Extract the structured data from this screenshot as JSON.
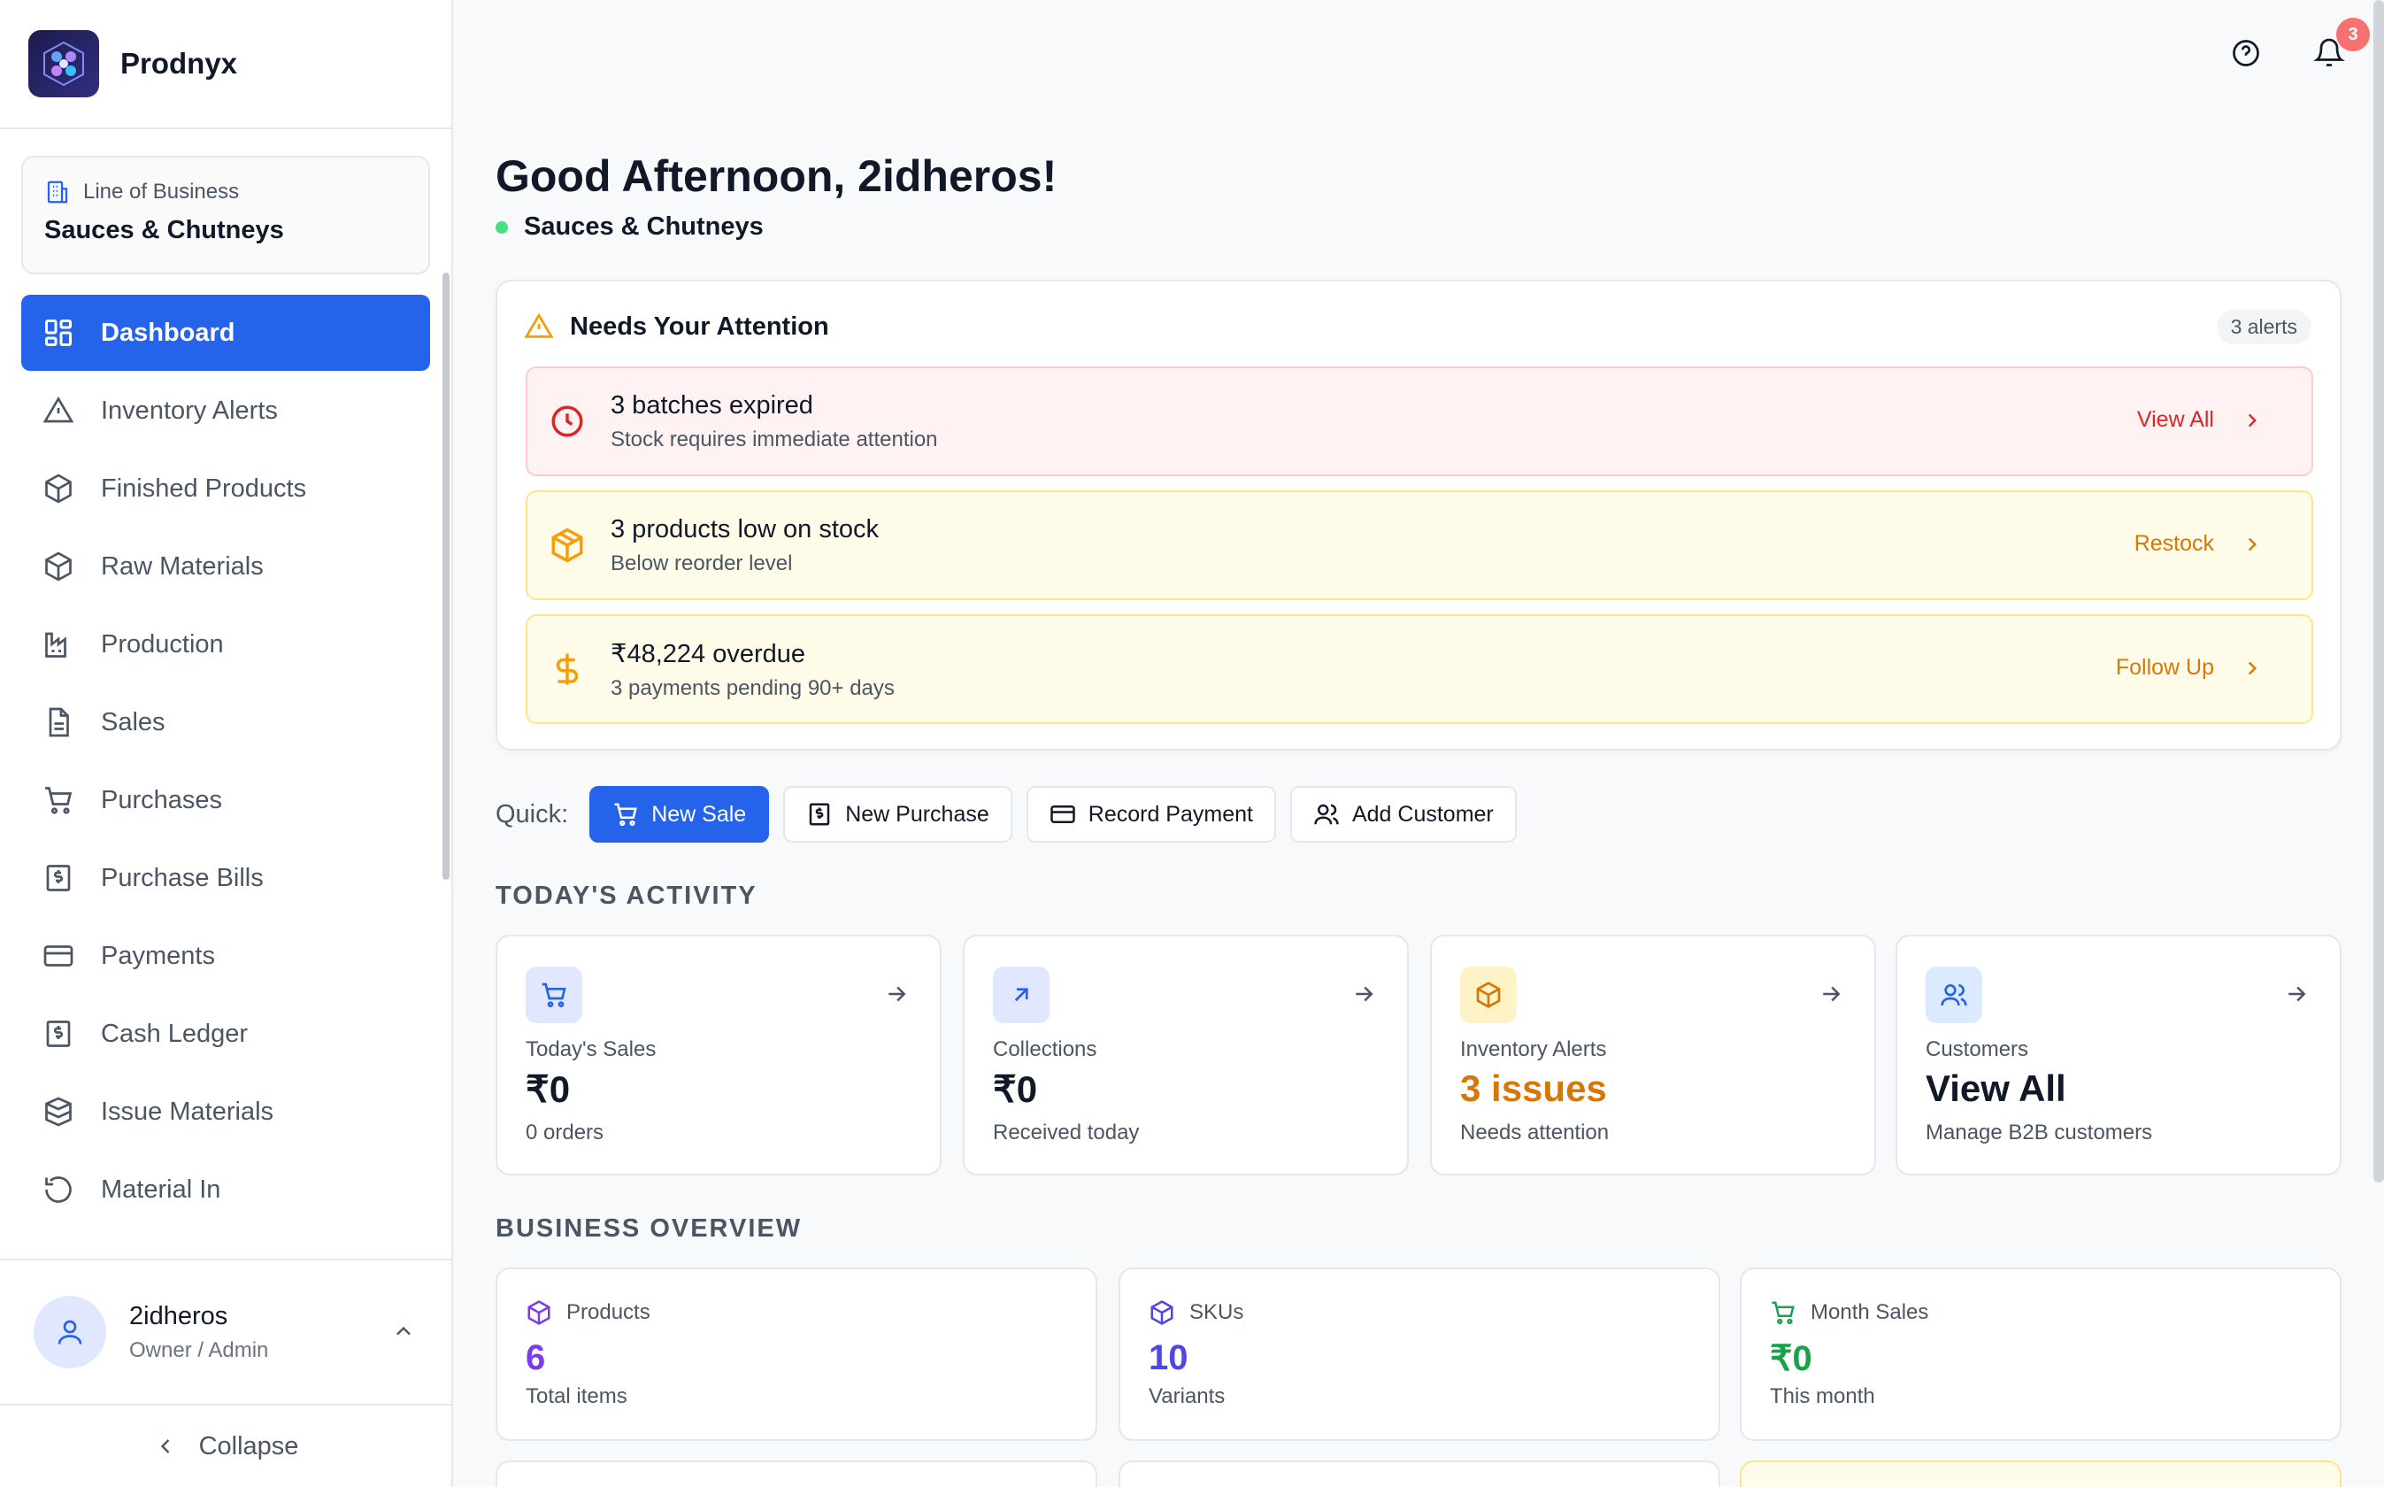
{
  "app": {
    "name": "Prodnyx"
  },
  "line_of_business": {
    "label": "Line of Business",
    "value": "Sauces & Chutneys"
  },
  "sidebar": {
    "items": [
      {
        "label": "Dashboard",
        "icon": "grid-icon",
        "active": true
      },
      {
        "label": "Inventory Alerts",
        "icon": "warning-icon"
      },
      {
        "label": "Finished Products",
        "icon": "box-icon"
      },
      {
        "label": "Raw Materials",
        "icon": "box-icon"
      },
      {
        "label": "Production",
        "icon": "factory-icon"
      },
      {
        "label": "Sales",
        "icon": "document-icon"
      },
      {
        "label": "Purchases",
        "icon": "cart-icon"
      },
      {
        "label": "Purchase Bills",
        "icon": "bill-icon"
      },
      {
        "label": "Payments",
        "icon": "card-icon"
      },
      {
        "label": "Cash Ledger",
        "icon": "bill-icon"
      },
      {
        "label": "Issue Materials",
        "icon": "boxes-icon"
      },
      {
        "label": "Material In",
        "icon": "rotate-ccw-icon"
      }
    ]
  },
  "user": {
    "name": "2idheros",
    "role": "Owner / Admin"
  },
  "collapse_label": "Collapse",
  "header": {
    "notification_count": "3"
  },
  "greeting": "Good Afternoon, 2idheros!",
  "business": "Sauces & Chutneys",
  "attention": {
    "title": "Needs Your Attention",
    "count_label": "3 alerts",
    "alerts": [
      {
        "title": "3 batches expired",
        "subtitle": "Stock requires immediate attention",
        "action": "View All",
        "tone": "red",
        "icon": "clock-icon"
      },
      {
        "title": "3 products low on stock",
        "subtitle": "Below reorder level",
        "action": "Restock",
        "tone": "yellow",
        "icon": "box-icon"
      },
      {
        "title": "₹48,224 overdue",
        "subtitle": "3 payments pending 90+ days",
        "action": "Follow Up",
        "tone": "yellow",
        "icon": "dollar-icon"
      }
    ]
  },
  "quick": {
    "label": "Quick:",
    "actions": [
      "New Sale",
      "New Purchase",
      "Record Payment",
      "Add Customer"
    ]
  },
  "todays_activity": {
    "title": "TODAY'S ACTIVITY",
    "cards": [
      {
        "label": "Today's Sales",
        "value": "₹0",
        "sub": "0 orders"
      },
      {
        "label": "Collections",
        "value": "₹0",
        "sub": "Received today"
      },
      {
        "label": "Inventory Alerts",
        "value": "3 issues",
        "sub": "Needs attention"
      },
      {
        "label": "Customers",
        "value": "View All",
        "sub": "Manage B2B customers"
      }
    ]
  },
  "business_overview": {
    "title": "BUSINESS OVERVIEW",
    "cards": [
      {
        "label": "Products",
        "value": "6",
        "sub": "Total items",
        "color": "#7c3aed"
      },
      {
        "label": "SKUs",
        "value": "10",
        "sub": "Variants",
        "color": "#4f46e5"
      },
      {
        "label": "Month Sales",
        "value": "₹0",
        "sub": "This month",
        "color": "#16a34a"
      }
    ]
  },
  "colors": {
    "primary": "#2563eb",
    "danger": "#dc2626",
    "warning": "#d97706",
    "success": "#16a34a"
  }
}
